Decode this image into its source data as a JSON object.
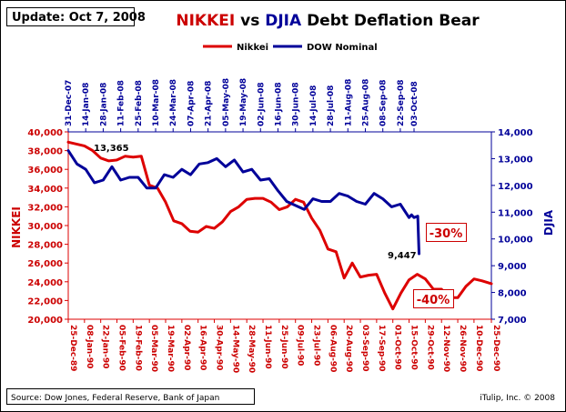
{
  "update_label": "Update: Oct 7, 2008",
  "title": {
    "part1": "NIKKEI",
    "part2": " vs ",
    "part3": "DJIA",
    "part4": " Debt Deflation Bear"
  },
  "source": "Source: Dow Jones, Federal Reserve, Bank of Japan",
  "credit": "iTulip, Inc. © 2008",
  "colors": {
    "nikkei": "#dd0000",
    "dow": "#000099"
  },
  "chart_data": {
    "type": "line",
    "legend": [
      "Nikkei",
      "DOW Nominal"
    ],
    "legend_position": "top-center",
    "grid": false,
    "left_axis": {
      "label": "NIKKEI",
      "min": 20000,
      "max": 40000,
      "ticks": [
        "20,000",
        "22,000",
        "24,000",
        "26,000",
        "28,000",
        "30,000",
        "32,000",
        "34,000",
        "36,000",
        "38,000",
        "40,000"
      ]
    },
    "right_axis": {
      "label": "DJIA",
      "min": 7000,
      "max": 14000,
      "ticks": [
        "7,000",
        "8,000",
        "9,000",
        "10,000",
        "11,000",
        "12,000",
        "13,000",
        "14,000"
      ]
    },
    "bottom_axis": {
      "ticks": [
        "25-Dec-89",
        "08-Jan-90",
        "22-Jan-90",
        "05-Feb-90",
        "19-Feb-90",
        "05-Mar-90",
        "19-Mar-90",
        "02-Apr-90",
        "16-Apr-90",
        "30-Apr-90",
        "14-May-90",
        "28-May-90",
        "11-Jun-90",
        "25-Jun-90",
        "09-Jul-90",
        "23-Jul-90",
        "06-Aug-90",
        "20-Aug-90",
        "03-Sep-90",
        "17-Sep-90",
        "01-Oct-90",
        "15-Oct-90",
        "29-Oct-90",
        "12-Nov-90",
        "26-Nov-90",
        "10-Dec-90",
        "25-Dec-90"
      ]
    },
    "top_axis": {
      "ticks": [
        "31-Dec-07",
        "14-Jan-08",
        "28-Jan-08",
        "11-Feb-08",
        "25-Feb-08",
        "10-Mar-08",
        "24-Mar-08",
        "07-Apr-08",
        "21-Apr-08",
        "05-May-08",
        "19-May-08",
        "02-Jun-08",
        "16-Jun-08",
        "30-Jun-08",
        "14-Jul-08",
        "28-Jul-08",
        "11-Aug-08",
        "25-Aug-08",
        "08-Sep-08",
        "22-Sep-08",
        "03-Oct-08"
      ]
    },
    "series": [
      {
        "name": "Nikkei",
        "axis": "left",
        "x_axis": "bottom",
        "points": [
          [
            "25-Dec-89",
            38900
          ],
          [
            "08-Jan-90",
            38500
          ],
          [
            "15-Jan-90",
            38000
          ],
          [
            "22-Jan-90",
            37200
          ],
          [
            "29-Jan-90",
            36900
          ],
          [
            "05-Feb-90",
            37000
          ],
          [
            "12-Feb-90",
            37400
          ],
          [
            "19-Feb-90",
            37300
          ],
          [
            "26-Feb-90",
            37400
          ],
          [
            "05-Mar-90",
            34300
          ],
          [
            "12-Mar-90",
            34000
          ],
          [
            "19-Mar-90",
            32500
          ],
          [
            "26-Mar-90",
            30500
          ],
          [
            "02-Apr-90",
            30200
          ],
          [
            "09-Apr-90",
            29400
          ],
          [
            "16-Apr-90",
            29300
          ],
          [
            "23-Apr-90",
            29900
          ],
          [
            "30-Apr-90",
            29700
          ],
          [
            "07-May-90",
            30400
          ],
          [
            "14-May-90",
            31500
          ],
          [
            "21-May-90",
            32000
          ],
          [
            "28-May-90",
            32800
          ],
          [
            "04-Jun-90",
            32900
          ],
          [
            "11-Jun-90",
            32900
          ],
          [
            "18-Jun-90",
            32500
          ],
          [
            "25-Jun-90",
            31700
          ],
          [
            "02-Jul-90",
            32000
          ],
          [
            "09-Jul-90",
            32800
          ],
          [
            "16-Jul-90",
            32500
          ],
          [
            "23-Jul-90",
            30800
          ],
          [
            "30-Jul-90",
            29500
          ],
          [
            "06-Aug-90",
            27500
          ],
          [
            "13-Aug-90",
            27200
          ],
          [
            "20-Aug-90",
            24400
          ],
          [
            "27-Aug-90",
            26000
          ],
          [
            "03-Sep-90",
            24500
          ],
          [
            "10-Sep-90",
            24700
          ],
          [
            "17-Sep-90",
            24800
          ],
          [
            "24-Sep-90",
            22800
          ],
          [
            "01-Oct-90",
            21100
          ],
          [
            "08-Oct-90",
            22800
          ],
          [
            "15-Oct-90",
            24200
          ],
          [
            "22-Oct-90",
            24800
          ],
          [
            "29-Oct-90",
            24300
          ],
          [
            "05-Nov-90",
            23200
          ],
          [
            "12-Nov-90",
            23200
          ],
          [
            "19-Nov-90",
            22300
          ],
          [
            "26-Nov-90",
            22300
          ],
          [
            "03-Dec-90",
            23500
          ],
          [
            "10-Dec-90",
            24300
          ],
          [
            "17-Dec-90",
            24100
          ],
          [
            "25-Dec-90",
            23800
          ]
        ]
      },
      {
        "name": "DOW Nominal",
        "axis": "right",
        "x_axis": "top",
        "points": [
          [
            "31-Dec-07",
            13300
          ],
          [
            "07-Jan-08",
            12800
          ],
          [
            "14-Jan-08",
            12600
          ],
          [
            "21-Jan-08",
            12100
          ],
          [
            "28-Jan-08",
            12200
          ],
          [
            "04-Feb-08",
            12700
          ],
          [
            "11-Feb-08",
            12200
          ],
          [
            "18-Feb-08",
            12300
          ],
          [
            "25-Feb-08",
            12300
          ],
          [
            "03-Mar-08",
            11900
          ],
          [
            "10-Mar-08",
            11900
          ],
          [
            "17-Mar-08",
            12400
          ],
          [
            "24-Mar-08",
            12300
          ],
          [
            "31-Mar-08",
            12600
          ],
          [
            "07-Apr-08",
            12400
          ],
          [
            "14-Apr-08",
            12800
          ],
          [
            "21-Apr-08",
            12850
          ],
          [
            "28-Apr-08",
            13000
          ],
          [
            "05-May-08",
            12700
          ],
          [
            "12-May-08",
            12950
          ],
          [
            "19-May-08",
            12500
          ],
          [
            "26-May-08",
            12600
          ],
          [
            "02-Jun-08",
            12200
          ],
          [
            "09-Jun-08",
            12250
          ],
          [
            "16-Jun-08",
            11800
          ],
          [
            "23-Jun-08",
            11400
          ],
          [
            "30-Jun-08",
            11250
          ],
          [
            "07-Jul-08",
            11100
          ],
          [
            "14-Jul-08",
            11500
          ],
          [
            "21-Jul-08",
            11400
          ],
          [
            "28-Jul-08",
            11400
          ],
          [
            "04-Aug-08",
            11700
          ],
          [
            "11-Aug-08",
            11600
          ],
          [
            "18-Aug-08",
            11400
          ],
          [
            "25-Aug-08",
            11300
          ],
          [
            "01-Sep-08",
            11700
          ],
          [
            "08-Sep-08",
            11500
          ],
          [
            "15-Sep-08",
            11200
          ],
          [
            "22-Sep-08",
            11300
          ],
          [
            "29-Sep-08",
            10800
          ],
          [
            "01-Oct-08",
            10900
          ],
          [
            "03-Oct-08",
            10800
          ],
          [
            "06-Oct-08",
            10850
          ],
          [
            "07-Oct-08",
            9447
          ]
        ]
      }
    ],
    "annotations": [
      {
        "text": "13,365",
        "type": "label",
        "near": "DOW Nominal start"
      },
      {
        "text": "9,447",
        "type": "label",
        "near": "DOW Nominal end"
      },
      {
        "text": "-30%",
        "type": "callout"
      },
      {
        "text": "-40%",
        "type": "callout"
      }
    ]
  }
}
